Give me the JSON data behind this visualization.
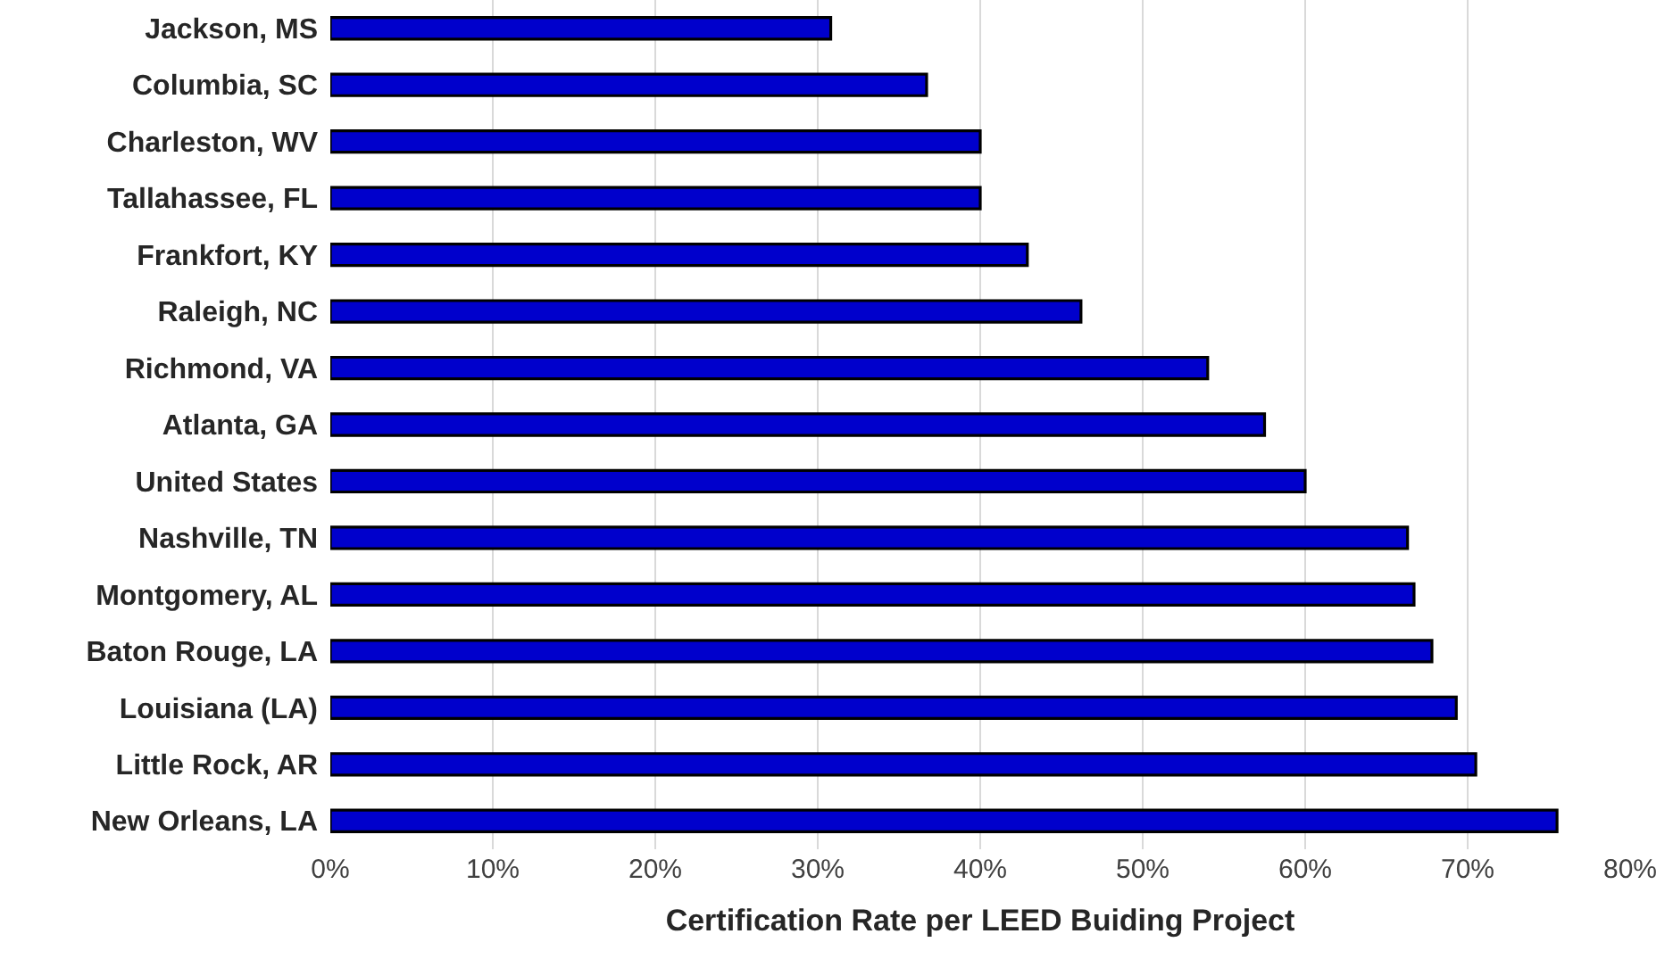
{
  "chart_data": {
    "type": "bar",
    "orientation": "horizontal",
    "categories": [
      "Jackson, MS",
      "Columbia, SC",
      "Charleston, WV",
      "Tallahassee, FL",
      "Frankfort, KY",
      "Raleigh, NC",
      "Richmond, VA",
      "Atlanta, GA",
      "United States",
      "Nashville, TN",
      "Montgomery, AL",
      "Baton Rouge, LA",
      "Louisiana (LA)",
      "Little Rock, AR",
      "New Orleans, LA"
    ],
    "values": [
      30.8,
      36.7,
      40.0,
      40.0,
      42.9,
      46.2,
      54.0,
      57.5,
      60.0,
      66.3,
      66.7,
      67.8,
      69.3,
      70.5,
      75.5
    ],
    "color": "#0000cc",
    "xlabel": "Certification Rate per LEED Buiding Project",
    "xlim": [
      0,
      80
    ],
    "xticks": [
      {
        "value": 0,
        "label": "0%"
      },
      {
        "value": 10,
        "label": "10%"
      },
      {
        "value": 20,
        "label": "20%"
      },
      {
        "value": 30,
        "label": "30%"
      },
      {
        "value": 40,
        "label": "40%"
      },
      {
        "value": 50,
        "label": "50%"
      },
      {
        "value": 60,
        "label": "60%"
      },
      {
        "value": 70,
        "label": "70%"
      },
      {
        "value": 80,
        "label": "80%"
      }
    ],
    "grid": "x"
  }
}
